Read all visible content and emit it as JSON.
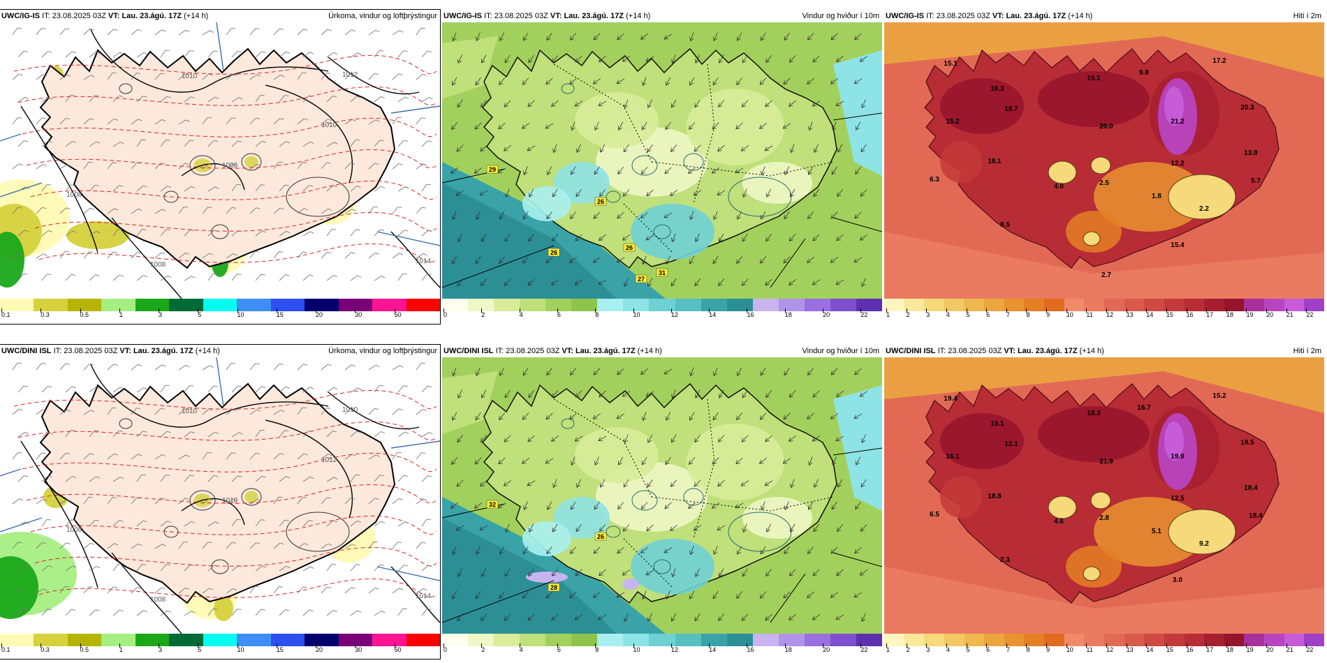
{
  "panels": [
    {
      "model": "UWC/IG-IS",
      "it_label": "IT:",
      "it_value": "23.08.2025 03Z",
      "vt_label": "VT:",
      "vt_value": "Lau. 23.ágú. 17Z",
      "lead": "(+14 h)",
      "product": "Úrkoma, vindur og loftþrýstingur",
      "type": "precip",
      "isobars": [
        "1010",
        "1012",
        "1010",
        "1008",
        "1008",
        "1008",
        "1014"
      ],
      "legend_ticks": [
        "0.1",
        "0.3",
        "0.5",
        "1",
        "3",
        "5",
        "10",
        "15",
        "20",
        "30",
        "50"
      ],
      "legend_colors": [
        "#fffab4",
        "#d6d13c",
        "#b7b400",
        "#a6ee82",
        "#1aa81a",
        "#006b35",
        "#00ffee",
        "#3f8ef5",
        "#2d4ef0",
        "#04006e",
        "#7a0078",
        "#ff1493",
        "#ff0000"
      ]
    },
    {
      "model": "UWC/IG-IS",
      "it_label": "IT:",
      "it_value": "23.08.2025 03Z",
      "vt_label": "VT:",
      "vt_value": "Lau. 23.ágú. 17Z",
      "lead": "(+14 h)",
      "product": "Vindur og hviður í 10m",
      "type": "wind",
      "gust_labels": [
        "29",
        "26",
        "26",
        "26",
        "27",
        "31"
      ],
      "legend_ticks": [
        "0",
        "2",
        "4",
        "6",
        "8",
        "10",
        "12",
        "14",
        "16",
        "18",
        "20",
        "22"
      ],
      "legend_colors": [
        "#ffffee",
        "#eef7c5",
        "#d8ec99",
        "#bfe07a",
        "#a2d05c",
        "#8fc44c",
        "#a8f0f0",
        "#8ee3e6",
        "#6fd0d4",
        "#55bfc2",
        "#3aa3a8",
        "#2c8f96",
        "#c8b4f0",
        "#b094ea",
        "#9a6fe0",
        "#7e50d0",
        "#5c30b0"
      ]
    },
    {
      "model": "UWC/IG-IS",
      "it_label": "IT:",
      "it_value": "23.08.2025 03Z",
      "vt_label": "VT:",
      "vt_value": "Lau. 23.ágú. 17Z",
      "lead": "(+14 h)",
      "product": "Hiti í 2m",
      "type": "temp",
      "temp_labels": [
        "15.1",
        "16.3",
        "15.2",
        "18.7",
        "18.1",
        "19.1",
        "9.8",
        "21.2",
        "20.0",
        "17.2",
        "20.3",
        "13.8",
        "12.2",
        "6.3",
        "4.0",
        "2.5",
        "1.8",
        "2.2",
        "5.7",
        "8.5",
        "15.4",
        "2.7"
      ],
      "legend_ticks": [
        "1",
        "2",
        "3",
        "4",
        "5",
        "6",
        "7",
        "8",
        "9",
        "10",
        "11",
        "12",
        "13",
        "14",
        "15",
        "16",
        "17",
        "18",
        "19",
        "20",
        "21",
        "22"
      ],
      "legend_colors": [
        "#fff5c0",
        "#fbe89a",
        "#f6d97a",
        "#f2c862",
        "#eeb84e",
        "#eba640",
        "#e8932f",
        "#e47f24",
        "#e06b20",
        "#f08a6a",
        "#ea7a60",
        "#e26a55",
        "#d95a4b",
        "#cf4a42",
        "#c43a3a",
        "#b82c35",
        "#a61f30",
        "#95142c",
        "#a8309a",
        "#b844c0",
        "#c65cd8",
        "#a040c8"
      ]
    },
    {
      "model": "UWC/DINI ISL",
      "it_label": "IT:",
      "it_value": "23.08.2025 03Z",
      "vt_label": "VT:",
      "vt_value": "Lau. 23.ágú. 17Z",
      "lead": "(+14 h)",
      "product": "Úrkoma, vindur og loftþrýstingur",
      "type": "precip",
      "isobars": [
        "1010",
        "1010",
        "1012",
        "1008",
        "1008",
        "1010",
        "1014"
      ],
      "legend_ticks": [
        "0.1",
        "0.3",
        "0.5",
        "1",
        "3",
        "5",
        "10",
        "15",
        "20",
        "30",
        "50"
      ],
      "legend_colors": [
        "#fffab4",
        "#d6d13c",
        "#b7b400",
        "#a6ee82",
        "#1aa81a",
        "#006b35",
        "#00ffee",
        "#3f8ef5",
        "#2d4ef0",
        "#04006e",
        "#7a0078",
        "#ff1493",
        "#ff0000"
      ]
    },
    {
      "model": "UWC/DINI ISL",
      "it_label": "IT:",
      "it_value": "23.08.2025 03Z",
      "vt_label": "VT:",
      "vt_value": "Lau. 23.ágú. 17Z",
      "lead": "(+14 h)",
      "product": "Vindur og hviður í 10m",
      "type": "wind",
      "gust_labels": [
        "32",
        "26",
        "28"
      ],
      "legend_ticks": [
        "0",
        "2",
        "4",
        "6",
        "8",
        "10",
        "12",
        "14",
        "16",
        "18",
        "20",
        "22"
      ],
      "legend_colors": [
        "#ffffee",
        "#eef7c5",
        "#d8ec99",
        "#bfe07a",
        "#a2d05c",
        "#8fc44c",
        "#a8f0f0",
        "#8ee3e6",
        "#6fd0d4",
        "#55bfc2",
        "#3aa3a8",
        "#2c8f96",
        "#c8b4f0",
        "#b094ea",
        "#9a6fe0",
        "#7e50d0",
        "#5c30b0"
      ]
    },
    {
      "model": "UWC/DINI ISL",
      "it_label": "IT:",
      "it_value": "23.08.2025 03Z",
      "vt_label": "VT:",
      "vt_value": "Lau. 23.ágú. 17Z",
      "lead": "(+14 h)",
      "product": "Hiti í 2m",
      "type": "temp",
      "temp_labels": [
        "19.4",
        "19.1",
        "16.1",
        "12.1",
        "18.8",
        "18.3",
        "16.7",
        "19.9",
        "21.9",
        "15.2",
        "19.5",
        "18.4",
        "12.5",
        "6.5",
        "4.6",
        "2.8",
        "5.1",
        "9.2",
        "18.4",
        "2.3",
        "3.0"
      ],
      "legend_ticks": [
        "1",
        "2",
        "3",
        "4",
        "5",
        "6",
        "7",
        "8",
        "9",
        "10",
        "11",
        "12",
        "13",
        "14",
        "15",
        "16",
        "17",
        "18",
        "19",
        "20",
        "21",
        "22"
      ],
      "legend_colors": [
        "#fff5c0",
        "#fbe89a",
        "#f6d97a",
        "#f2c862",
        "#eeb84e",
        "#eba640",
        "#e8932f",
        "#e47f24",
        "#e06b20",
        "#f08a6a",
        "#ea7a60",
        "#e26a55",
        "#d95a4b",
        "#cf4a42",
        "#c43a3a",
        "#b82c35",
        "#a61f30",
        "#95142c",
        "#a8309a",
        "#b844c0",
        "#c65cd8",
        "#a040c8"
      ]
    }
  ]
}
